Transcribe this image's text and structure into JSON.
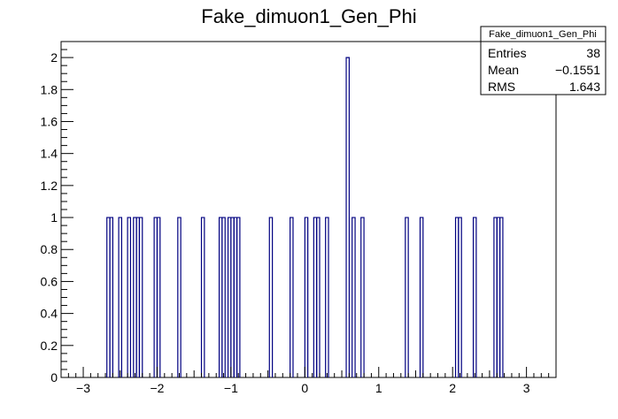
{
  "chart_data": {
    "type": "bar",
    "title": "Fake_dimuon1_Gen_Phi",
    "xlabel": "",
    "ylabel": "",
    "xlim": [
      -3.3,
      3.4
    ],
    "ylim": [
      0,
      2.1
    ],
    "bin_width": 0.04,
    "x_ticks": [
      -3,
      -2,
      -1,
      0,
      1,
      2,
      3
    ],
    "x_tick_labels": [
      "−3",
      "−2",
      "−1",
      "0",
      "1",
      "2",
      "3"
    ],
    "y_ticks": [
      0,
      0.2,
      0.4,
      0.6,
      0.8,
      1,
      1.2,
      1.4,
      1.6,
      1.8,
      2
    ],
    "y_tick_labels": [
      "0",
      "0.2",
      "0.4",
      "0.6",
      "0.8",
      "1",
      "1.2",
      "1.4",
      "1.6",
      "1.8",
      "2"
    ],
    "line_color": "#000080",
    "grid": false,
    "legend": "none",
    "series": [
      {
        "x": [
          -2.66,
          -2.62,
          -2.5,
          -2.38,
          -2.3,
          -2.26,
          -2.22,
          -2.02,
          -1.98,
          -1.7,
          -1.38,
          -1.14,
          -1.1,
          -1.02,
          -0.98,
          -0.94,
          -0.9,
          -0.46,
          -0.18,
          0.02,
          0.14,
          0.18,
          0.3,
          0.58,
          0.66,
          0.78,
          1.38,
          1.58,
          2.06,
          2.1,
          2.3,
          2.58,
          2.62,
          2.66
        ],
        "values": [
          1,
          1,
          1,
          1,
          1,
          1,
          1,
          1,
          1,
          1,
          1,
          1,
          1,
          1,
          1,
          1,
          1,
          1,
          1,
          1,
          1,
          1,
          1,
          2,
          1,
          1,
          1,
          1,
          1,
          1,
          1,
          1,
          1,
          1
        ]
      }
    ],
    "stats": {
      "name": "Fake_dimuon1_Gen_Phi",
      "entries_label": "Entries",
      "entries": "38",
      "mean_label": "Mean",
      "mean": "−0.1551",
      "rms_label": "RMS",
      "rms": "1.643",
      "placement": "top-right"
    }
  }
}
